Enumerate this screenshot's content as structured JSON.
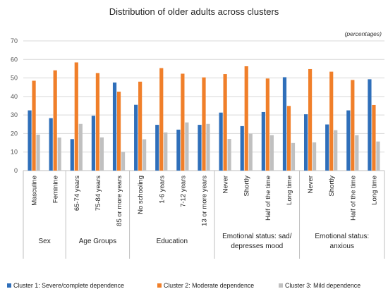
{
  "chart_data": {
    "type": "bar",
    "title": "Distribution of older adults across clusters",
    "unit_label": "(percentages)",
    "ylim": [
      0,
      70
    ],
    "yticks": [
      0,
      10,
      20,
      30,
      40,
      50,
      60,
      70
    ],
    "grid": true,
    "legend_position": "bottom",
    "groups": [
      {
        "label": [
          "Sex"
        ],
        "categories": [
          "Masculine",
          "Feminine"
        ]
      },
      {
        "label": [
          "Age Groups"
        ],
        "categories": [
          "65-74 years",
          "75-84 years",
          "85 or more years"
        ]
      },
      {
        "label": [
          "Education"
        ],
        "categories": [
          "No schooling",
          "1-6 years",
          "7-12 years",
          "13 or more years"
        ]
      },
      {
        "label": [
          "Emotional status: sad/",
          "depresses mood"
        ],
        "categories": [
          "Never",
          "Shortly",
          "Half of the time",
          "Long time"
        ]
      },
      {
        "label": [
          "Emotional status:",
          "anxious"
        ],
        "categories": [
          "Never",
          "Shortly",
          "Half of the time",
          "Long time"
        ]
      }
    ],
    "series": [
      {
        "name": "Cluster 1: Severe/complete dependence",
        "color": "#2f6fba",
        "values": [
          32.5,
          28.3,
          17.0,
          29.6,
          47.5,
          35.5,
          24.7,
          22.1,
          24.7,
          31.3,
          24.0,
          31.6,
          50.4,
          30.4,
          24.9,
          32.5,
          49.3
        ]
      },
      {
        "name": "Cluster 2: Moderate dependence",
        "color": "#f07f2a",
        "values": [
          48.5,
          54.1,
          58.4,
          52.6,
          42.6,
          48.0,
          55.3,
          52.3,
          50.3,
          52.1,
          56.3,
          49.7,
          34.9,
          54.8,
          53.4,
          48.9,
          35.4
        ]
      },
      {
        "name": "Cluster 3: Mild dependence",
        "color": "#c0c0c0",
        "values": [
          19.4,
          17.8,
          25.2,
          17.9,
          10.1,
          16.9,
          20.6,
          26.0,
          25.2,
          17.1,
          19.9,
          19.1,
          14.9,
          15.2,
          21.8,
          19.1,
          15.7
        ]
      }
    ]
  }
}
